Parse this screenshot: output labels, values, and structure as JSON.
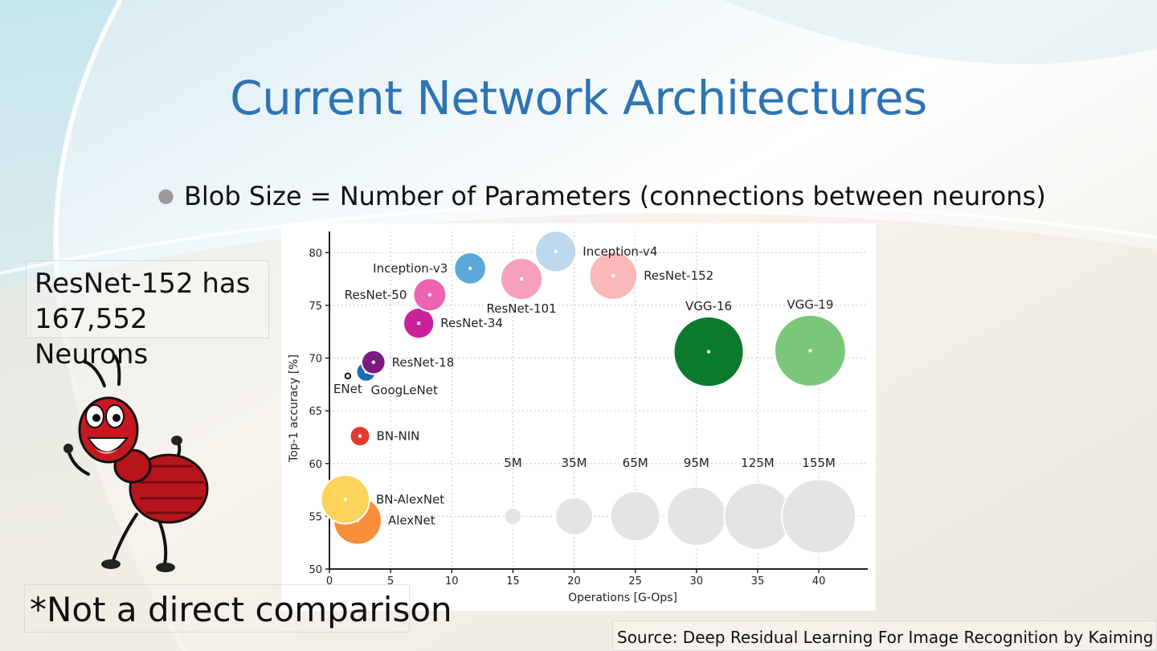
{
  "slide": {
    "title": "Current Network Architectures",
    "bullet": "Blob Size = Number of Parameters (connections between neurons)",
    "note_line1": "ResNet-152 has",
    "note_line2": "167,552 Neurons",
    "caveat": "*Not a direct comparison",
    "source": "Source: Deep Residual Learning For Image Recognition by Kaiming He et."
  },
  "chart_data": {
    "type": "scatter",
    "title": "",
    "xlabel": "Operations [G-Ops]",
    "ylabel": "Top-1 accuracy [%]",
    "xlim": [
      0,
      44
    ],
    "ylim": [
      50,
      82
    ],
    "xticks": [
      0,
      5,
      10,
      15,
      20,
      25,
      30,
      35,
      40
    ],
    "yticks": [
      50,
      55,
      60,
      65,
      70,
      75,
      80
    ],
    "grid": true,
    "points": [
      {
        "name": "AlexNet",
        "x": 2.3,
        "y": 54.6,
        "params_m": 61,
        "color": "#f88d3a",
        "label_pos": "right"
      },
      {
        "name": "BN-AlexNet",
        "x": 1.3,
        "y": 56.6,
        "params_m": 62,
        "color": "#fdd35c",
        "label_pos": "right"
      },
      {
        "name": "BN-NIN",
        "x": 2.5,
        "y": 62.6,
        "params_m": 7.6,
        "color": "#e23a2f",
        "label_pos": "right"
      },
      {
        "name": "ENet",
        "x": 1.5,
        "y": 68.3,
        "params_m": 0.4,
        "color": "#111111",
        "label_pos": "below"
      },
      {
        "name": "GoogLeNet",
        "x": 3.0,
        "y": 68.7,
        "params_m": 7,
        "color": "#1a6db6",
        "label_pos": "below-right"
      },
      {
        "name": "ResNet-18",
        "x": 3.6,
        "y": 69.6,
        "params_m": 11.7,
        "color": "#7b1a80",
        "label_pos": "right"
      },
      {
        "name": "ResNet-34",
        "x": 7.3,
        "y": 73.3,
        "params_m": 21.8,
        "color": "#c9229a",
        "label_pos": "right"
      },
      {
        "name": "ResNet-50",
        "x": 8.2,
        "y": 76.0,
        "params_m": 25.6,
        "color": "#ef64b0",
        "label_pos": "left"
      },
      {
        "name": "Inception-v3",
        "x": 11.5,
        "y": 78.5,
        "params_m": 23.8,
        "color": "#5ca8da",
        "label_pos": "left"
      },
      {
        "name": "ResNet-101",
        "x": 15.7,
        "y": 77.5,
        "params_m": 44.5,
        "color": "#f6a0bc",
        "label_pos": "below"
      },
      {
        "name": "Inception-v4",
        "x": 18.5,
        "y": 80.1,
        "params_m": 42.7,
        "color": "#bed8ee",
        "label_pos": "right"
      },
      {
        "name": "ResNet-152",
        "x": 23.2,
        "y": 77.8,
        "params_m": 60.2,
        "color": "#f9b9b9",
        "label_pos": "right"
      },
      {
        "name": "VGG-16",
        "x": 31.0,
        "y": 70.6,
        "params_m": 138,
        "color": "#0b7a2d",
        "label_pos": "above"
      },
      {
        "name": "VGG-19",
        "x": 39.3,
        "y": 70.7,
        "params_m": 144,
        "color": "#7bc779",
        "label_pos": "above"
      }
    ],
    "size_legend": {
      "y": 55,
      "label_y": 60,
      "color": "#e4e4e4",
      "items": [
        {
          "label": "5M",
          "x": 15,
          "params_m": 5
        },
        {
          "label": "35M",
          "x": 20,
          "params_m": 35
        },
        {
          "label": "65M",
          "x": 25,
          "params_m": 65
        },
        {
          "label": "95M",
          "x": 30,
          "params_m": 95
        },
        {
          "label": "125M",
          "x": 35,
          "params_m": 125
        },
        {
          "label": "155M",
          "x": 40,
          "params_m": 155
        }
      ]
    }
  }
}
